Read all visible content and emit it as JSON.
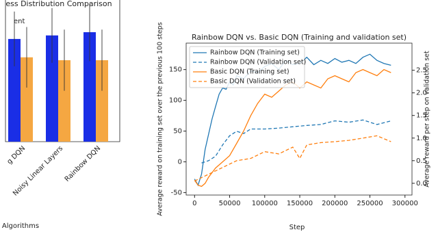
{
  "chart_data": [
    {
      "type": "bar",
      "title": "ess Distribution Comparison",
      "annotations": [
        "ent"
      ],
      "xlabel": "Algorithms",
      "categories": [
        "g DQN",
        "Noisy Linear Layers",
        "Rainbow DQN"
      ],
      "ylim": [
        0,
        4.4
      ],
      "series": [
        {
          "color": "#1a2ee6",
          "values": [
            3.19,
            3.3,
            3.4
          ],
          "errors": [
            0.85,
            0.85,
            0.9
          ]
        },
        {
          "color": "#f5a742",
          "values": [
            2.62,
            2.53,
            2.53
          ],
          "errors": [
            0.94,
            0.95,
            0.95
          ]
        }
      ]
    },
    {
      "type": "line",
      "title": "Rainbow DQN vs. Basic DQN (Training and validation set)",
      "xlabel": "Step",
      "ylabel": "Average reward on training set over the previous 100 steps",
      "y2label": "Average reward per step on validation set",
      "legend": "upper left",
      "xlim": [
        -12000,
        310000
      ],
      "xticks": [
        0,
        50000,
        100000,
        150000,
        200000,
        250000,
        300000
      ],
      "ylim": [
        -54,
        193
      ],
      "yticks": [
        -50,
        0,
        50,
        100,
        150
      ],
      "y2lim": [
        -0.26,
        3.1
      ],
      "y2ticks": [
        {
          "value": 0,
          "label": "0.0"
        },
        0.5,
        {
          "value": 1,
          "label": "1.0"
        },
        1.5,
        {
          "value": 2,
          "label": "2.0"
        },
        2.5
      ],
      "series": [
        {
          "name": "Rainbow DQN (Training set)",
          "color": "#1f77b4",
          "dash": false,
          "x": [
            0,
            5000,
            10000,
            15000,
            20000,
            25000,
            30000,
            35000,
            40000,
            45000,
            50000,
            55000,
            60000,
            70000,
            80000,
            90000,
            100000,
            110000,
            120000,
            130000,
            140000,
            150000,
            160000,
            170000,
            180000,
            190000,
            200000,
            210000,
            220000,
            230000,
            240000,
            250000,
            260000,
            270000,
            280000
          ],
          "values": [
            -28,
            -38,
            -20,
            20,
            45,
            70,
            90,
            110,
            120,
            118,
            130,
            125,
            140,
            135,
            148,
            145,
            155,
            160,
            150,
            165,
            158,
            160,
            170,
            158,
            165,
            160,
            168,
            162,
            165,
            160,
            170,
            175,
            165,
            160,
            157
          ]
        },
        {
          "name": "Rainbow DQN (Validation set)",
          "color": "#1f77b4",
          "dash": true,
          "axis": "y2",
          "x": [
            10000,
            20000,
            30000,
            40000,
            50000,
            60000,
            70000,
            80000,
            100000,
            120000,
            140000,
            160000,
            180000,
            200000,
            220000,
            240000,
            260000,
            280000
          ],
          "values": [
            0.45,
            0.5,
            0.6,
            0.85,
            1.05,
            1.15,
            1.1,
            1.2,
            1.2,
            1.22,
            1.25,
            1.28,
            1.3,
            1.38,
            1.35,
            1.4,
            1.3,
            1.38
          ]
        },
        {
          "name": "Basic DQN (Training set)",
          "color": "#ff7f0e",
          "dash": false,
          "x": [
            0,
            5000,
            10000,
            15000,
            20000,
            30000,
            40000,
            50000,
            60000,
            70000,
            80000,
            90000,
            100000,
            110000,
            120000,
            130000,
            140000,
            150000,
            160000,
            170000,
            180000,
            190000,
            200000,
            210000,
            220000,
            230000,
            240000,
            250000,
            260000,
            270000,
            280000
          ],
          "values": [
            -30,
            -38,
            -40,
            -35,
            -25,
            -10,
            0,
            10,
            30,
            50,
            75,
            95,
            110,
            105,
            115,
            125,
            130,
            120,
            130,
            125,
            120,
            135,
            140,
            135,
            130,
            145,
            150,
            145,
            140,
            150,
            145
          ]
        },
        {
          "name": "Basic DQN (Validation set)",
          "color": "#ff7f0e",
          "dash": true,
          "axis": "y2",
          "x": [
            0,
            20000,
            40000,
            60000,
            80000,
            100000,
            120000,
            140000,
            150000,
            160000,
            180000,
            200000,
            220000,
            240000,
            260000,
            280000
          ],
          "values": [
            0.05,
            0.2,
            0.35,
            0.5,
            0.55,
            0.7,
            0.65,
            0.8,
            0.55,
            0.85,
            0.9,
            0.92,
            0.95,
            1.0,
            1.05,
            0.92
          ]
        }
      ]
    }
  ]
}
